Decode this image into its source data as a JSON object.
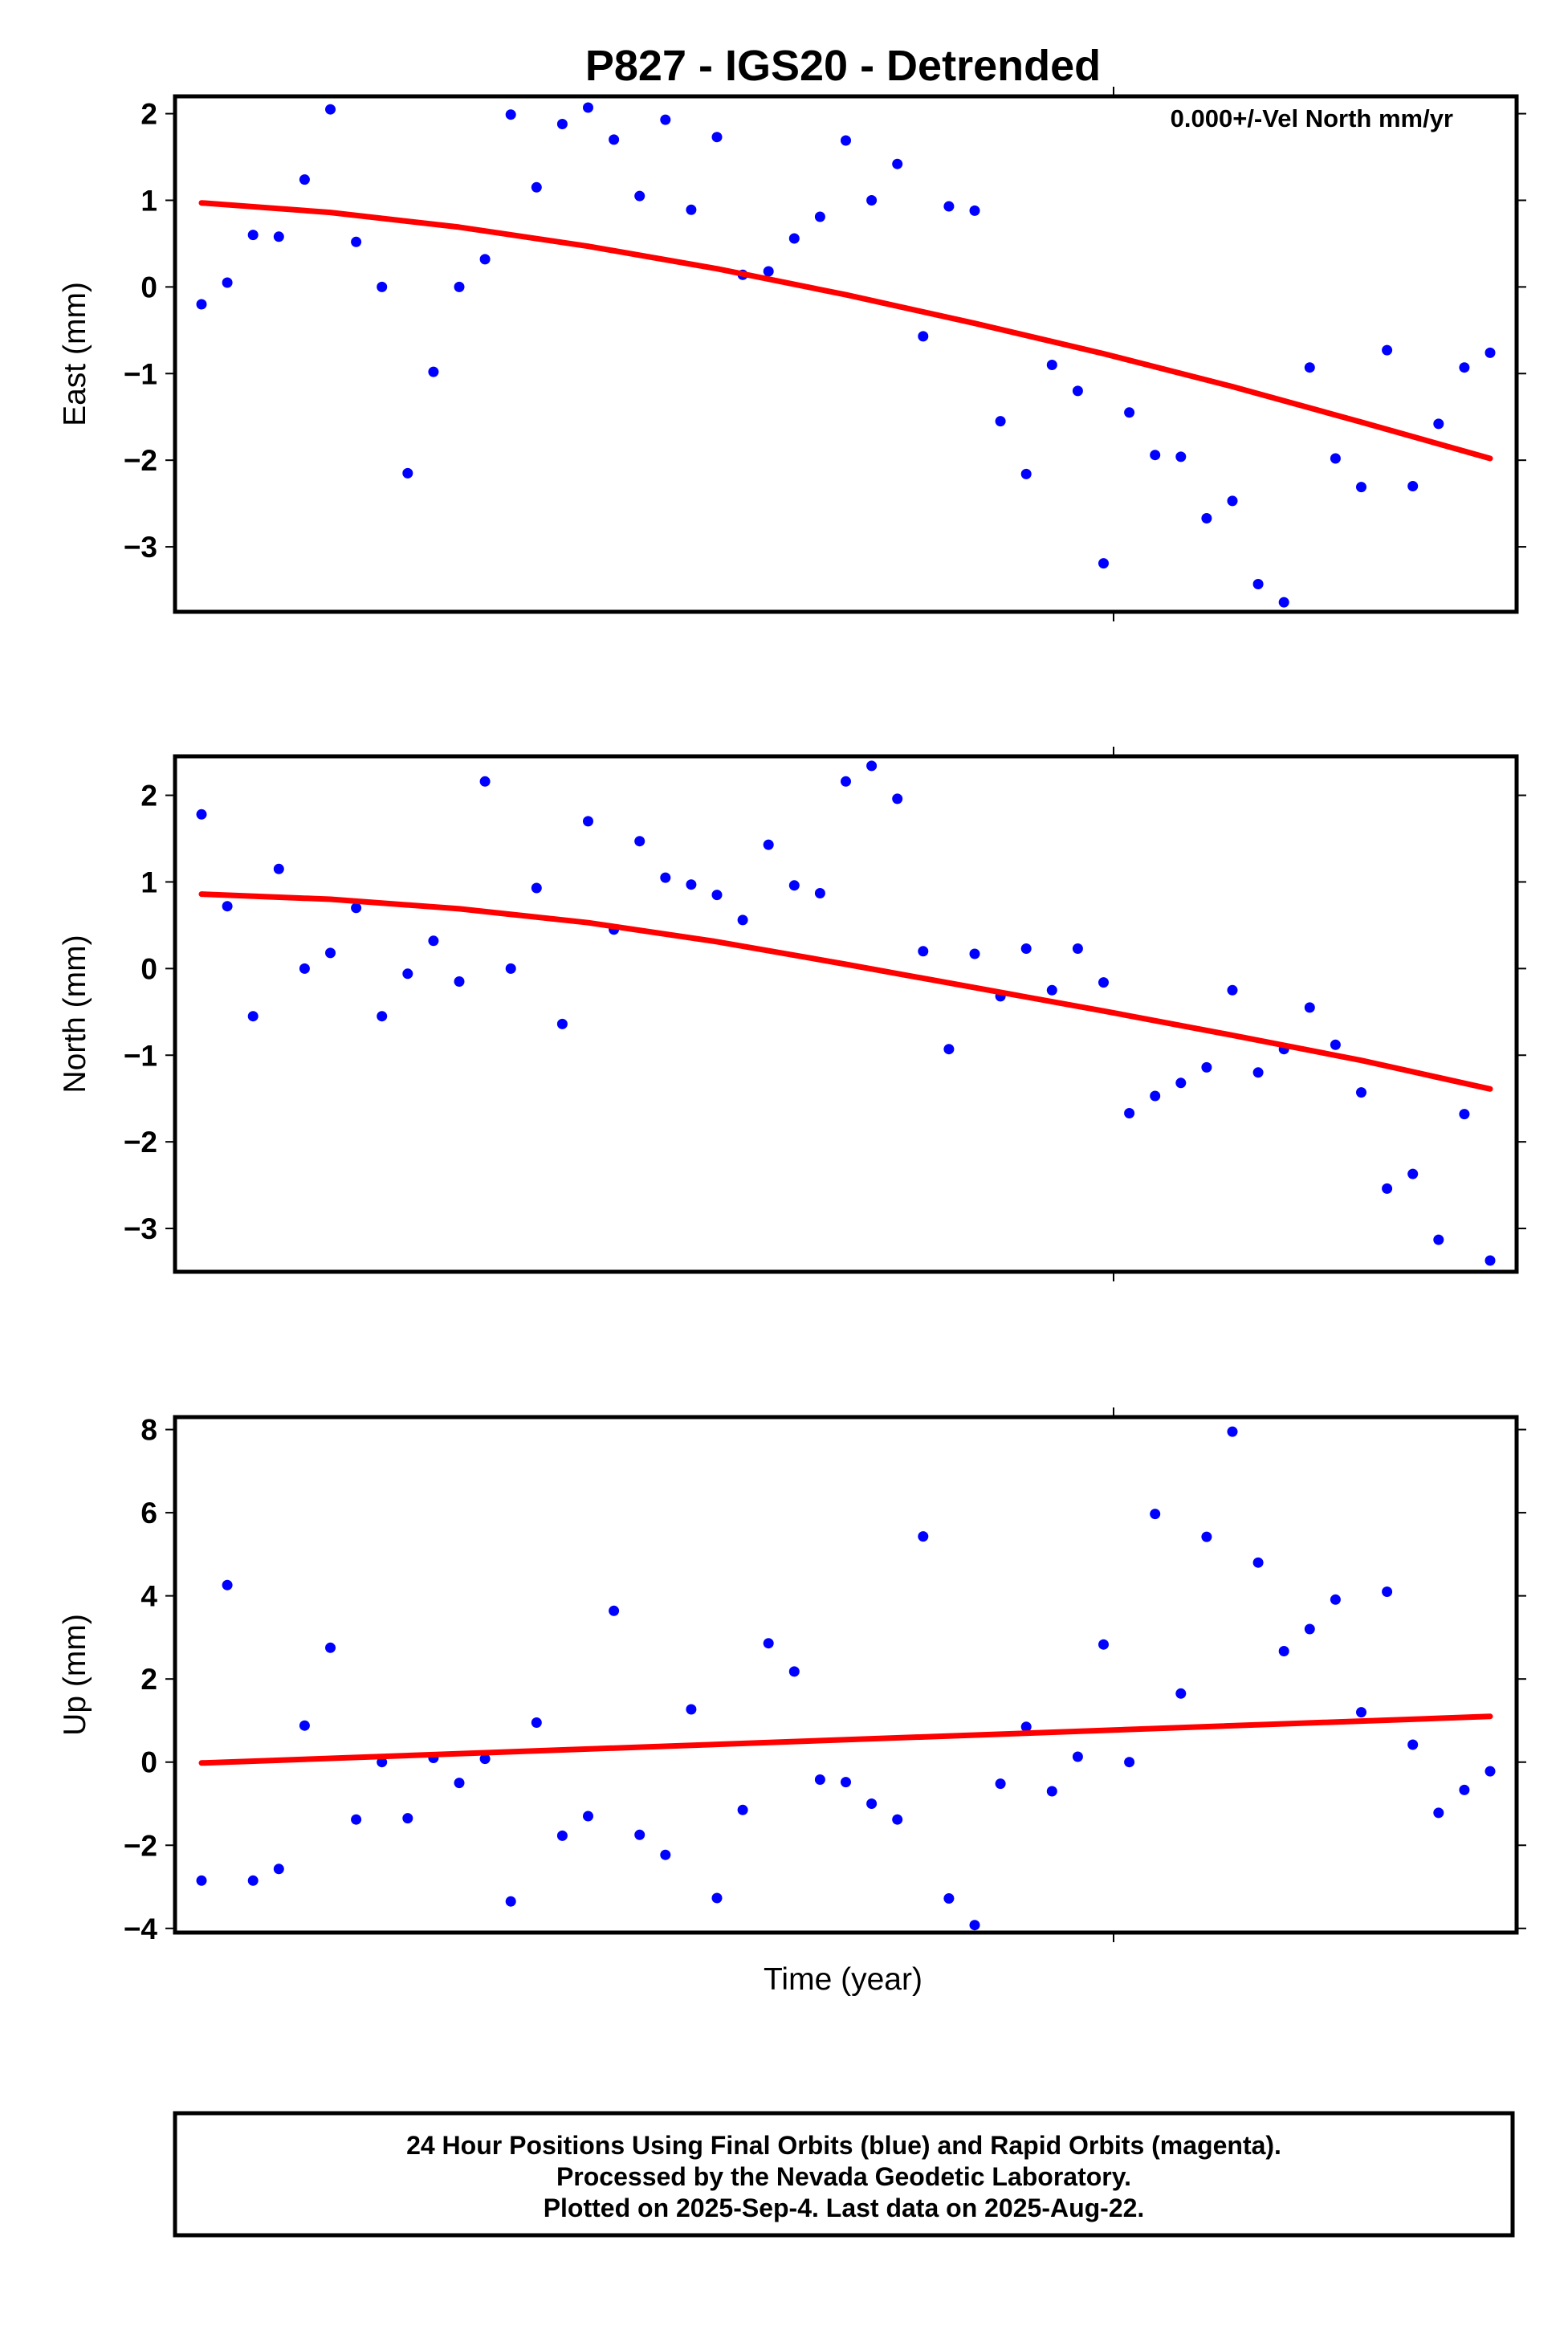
{
  "chart_data": [
    {
      "type": "scatter",
      "title": "P827 - IGS20 - Detrended",
      "ylabel": "East (mm)",
      "annotation": "0.000+/-Vel North mm/yr",
      "ylim": [
        -3.75,
        2.2
      ],
      "yticks": [
        "−3",
        "−2",
        "−1",
        "0",
        "1",
        "2"
      ],
      "ytick_values": [
        -3,
        -2,
        -1,
        0,
        1,
        2
      ],
      "grid": false,
      "series": [
        {
          "color": "#0000ff",
          "x": [
            0,
            1,
            2,
            3,
            4,
            5,
            6,
            7,
            8,
            9,
            10,
            11,
            12,
            13,
            14,
            15,
            16,
            17,
            18,
            19,
            20,
            21,
            22,
            23,
            24,
            25,
            26,
            27,
            28,
            29,
            30,
            31,
            32,
            33,
            34,
            35,
            36,
            37,
            38,
            39,
            40,
            41,
            42,
            43,
            44,
            45,
            46,
            47,
            48,
            49,
            50
          ],
          "y": [
            -0.2,
            0.05,
            0.6,
            0.58,
            1.24,
            2.05,
            0.52,
            0.0,
            -2.15,
            -0.98,
            0.0,
            0.32,
            1.99,
            1.15,
            1.88,
            2.07,
            1.7,
            1.05,
            1.93,
            0.89,
            1.73,
            0.14,
            0.18,
            0.56,
            0.81,
            1.69,
            1.0,
            1.42,
            -0.57,
            0.93,
            0.88,
            -1.55,
            -2.16,
            -0.9,
            -1.2,
            -3.19,
            -1.45,
            -1.94,
            -1.96,
            -2.67,
            -2.47,
            -3.43,
            -3.64,
            -0.93,
            -1.98,
            -2.31,
            -0.73,
            -2.3,
            -1.58,
            -0.93,
            -0.76
          ]
        },
        {
          "color": "#ff0000",
          "x": [
            0,
            5,
            10,
            15,
            20,
            25,
            30,
            35,
            40,
            45,
            50
          ],
          "y": [
            0.97,
            0.86,
            0.69,
            0.47,
            0.21,
            -0.09,
            -0.42,
            -0.77,
            -1.15,
            -1.56,
            -1.98
          ]
        }
      ]
    },
    {
      "type": "scatter",
      "ylabel": "North (mm)",
      "ylim": [
        -3.5,
        2.45
      ],
      "yticks": [
        "−3",
        "−2",
        "−1",
        "0",
        "1",
        "2"
      ],
      "ytick_values": [
        -3,
        -2,
        -1,
        0,
        1,
        2
      ],
      "grid": false,
      "series": [
        {
          "color": "#0000ff",
          "x": [
            0,
            1,
            2,
            3,
            4,
            5,
            6,
            7,
            8,
            9,
            10,
            11,
            12,
            13,
            14,
            15,
            16,
            17,
            18,
            19,
            20,
            21,
            22,
            23,
            24,
            25,
            26,
            27,
            28,
            29,
            30,
            31,
            32,
            33,
            34,
            35,
            36,
            37,
            38,
            39,
            40,
            41,
            42,
            43,
            44,
            45,
            46,
            47,
            48,
            49,
            50
          ],
          "y": [
            1.78,
            0.72,
            -0.55,
            1.15,
            0.0,
            0.18,
            0.7,
            -0.55,
            -0.06,
            0.32,
            -0.15,
            2.16,
            0.0,
            0.93,
            -0.64,
            1.7,
            0.45,
            1.47,
            1.05,
            0.97,
            0.85,
            0.56,
            1.43,
            0.96,
            0.87,
            2.16,
            2.34,
            1.96,
            0.2,
            -0.93,
            0.17,
            -0.32,
            0.23,
            -0.25,
            0.23,
            -0.16,
            -1.67,
            -1.47,
            -1.32,
            -1.14,
            -0.25,
            -1.2,
            -0.93,
            -0.45,
            -0.88,
            -1.43,
            -2.54,
            -2.37,
            -3.13,
            -1.68,
            -3.37
          ]
        },
        {
          "color": "#ff0000",
          "x": [
            0,
            5,
            10,
            15,
            20,
            25,
            30,
            35,
            40,
            45,
            50
          ],
          "y": [
            0.86,
            0.8,
            0.69,
            0.53,
            0.31,
            0.05,
            -0.22,
            -0.49,
            -0.77,
            -1.06,
            -1.39
          ]
        }
      ]
    },
    {
      "type": "scatter",
      "ylabel": "Up (mm)",
      "xlabel": "Time (year)",
      "ylim": [
        -4.1,
        8.3
      ],
      "yticks": [
        "−4",
        "−2",
        "0",
        "2",
        "4",
        "6",
        "8"
      ],
      "ytick_values": [
        -4,
        -2,
        0,
        2,
        4,
        6,
        8
      ],
      "grid": false,
      "series": [
        {
          "color": "#0000ff",
          "x": [
            0,
            1,
            2,
            3,
            4,
            5,
            6,
            7,
            8,
            9,
            10,
            11,
            12,
            13,
            14,
            15,
            16,
            17,
            18,
            19,
            20,
            21,
            22,
            23,
            24,
            25,
            26,
            27,
            28,
            29,
            30,
            31,
            32,
            33,
            34,
            35,
            36,
            37,
            38,
            39,
            40,
            41,
            42,
            43,
            44,
            45,
            46,
            47,
            48,
            49,
            50
          ],
          "y": [
            -2.85,
            4.26,
            -2.85,
            -2.57,
            0.88,
            2.75,
            -1.38,
            0.0,
            -1.35,
            0.1,
            -0.5,
            0.08,
            -3.35,
            0.95,
            -1.77,
            -1.3,
            3.64,
            -1.75,
            -2.23,
            1.27,
            -3.27,
            -1.15,
            2.86,
            2.18,
            -0.42,
            -0.48,
            -1.0,
            -1.38,
            5.43,
            -3.28,
            -3.92,
            -0.52,
            0.85,
            -0.7,
            0.13,
            2.83,
            0.0,
            5.97,
            1.65,
            5.42,
            7.95,
            4.8,
            2.67,
            3.2,
            3.91,
            1.2,
            4.1,
            0.42,
            -1.22,
            -0.67,
            -0.22
          ]
        },
        {
          "color": "#ff0000",
          "x": [
            0,
            50
          ],
          "y": [
            -0.02,
            1.1
          ]
        }
      ]
    }
  ],
  "footer": {
    "line1": "24 Hour Positions Using Final Orbits (blue) and Rapid Orbits (magenta).",
    "line2": "Processed by the Nevada Geodetic Laboratory.",
    "line3": "Plotted on 2025-Sep-4. Last data on 2025-Aug-22."
  }
}
